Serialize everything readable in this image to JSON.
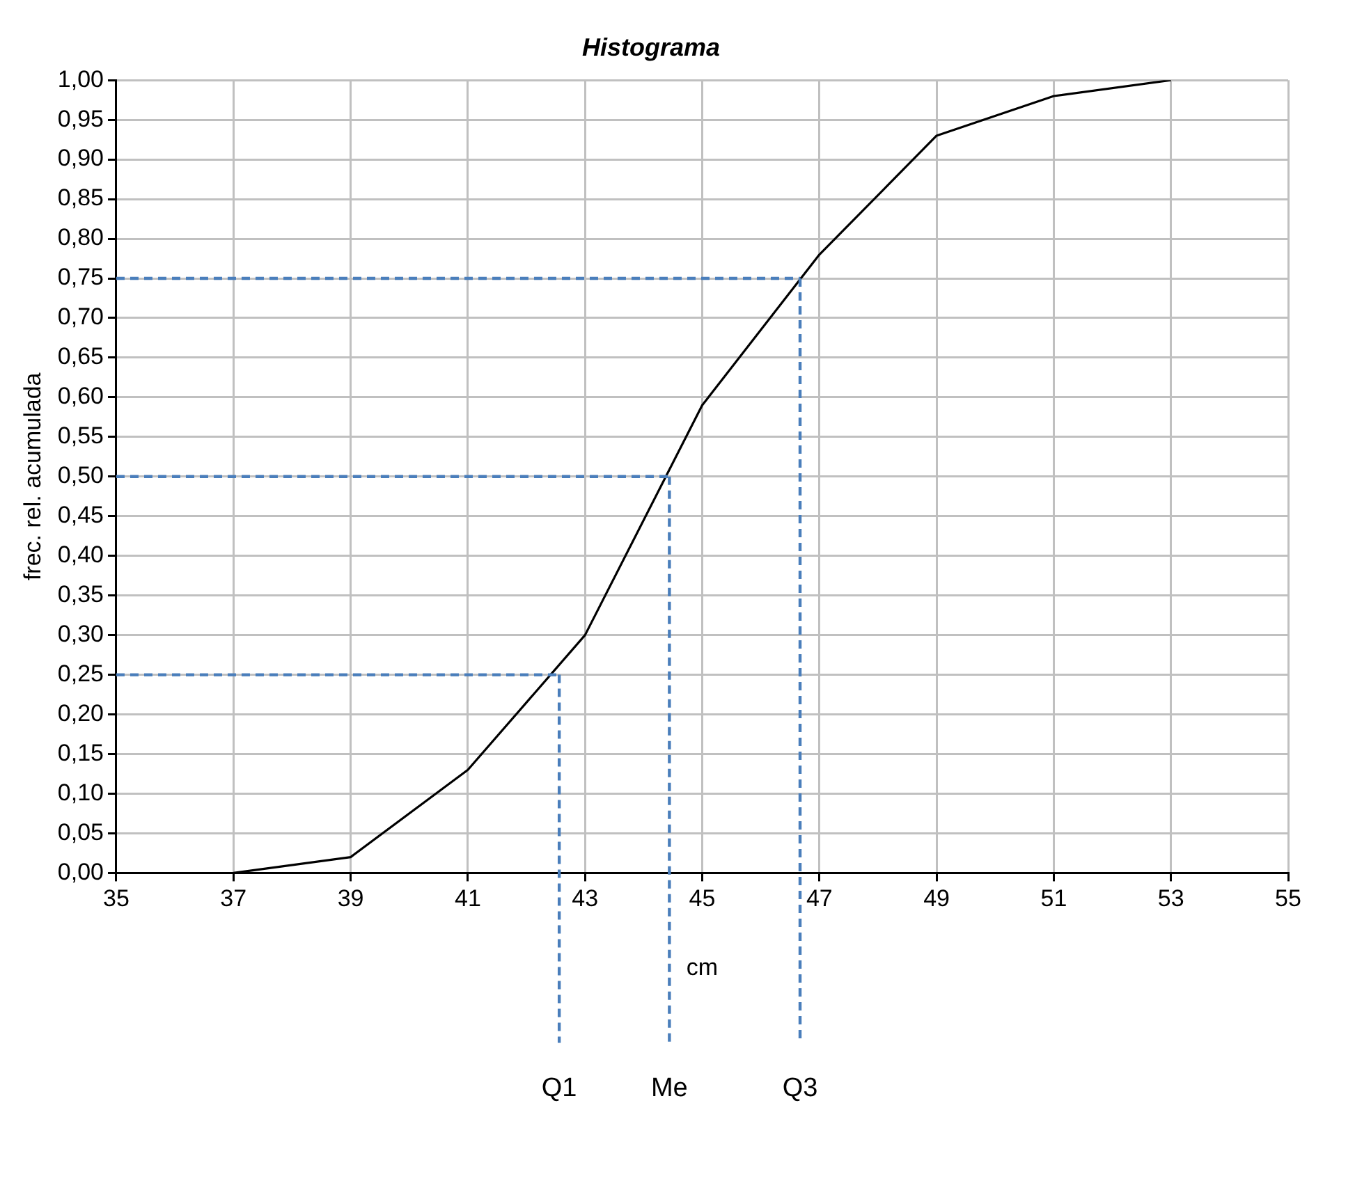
{
  "chart_data": {
    "type": "line",
    "title": "Histograma",
    "xlabel": "cm",
    "ylabel": "frec. rel. acumulada",
    "x": [
      37,
      39,
      41,
      43,
      45,
      47,
      49,
      51,
      53
    ],
    "series": [
      {
        "color": "#000000",
        "values": [
          0,
          0.02,
          0.13,
          0.3,
          0.59,
          0.78,
          0.93,
          0.98,
          1.0
        ]
      }
    ],
    "xlim": [
      35,
      55
    ],
    "xticks": [
      35,
      37,
      39,
      41,
      43,
      45,
      47,
      49,
      51,
      53,
      55
    ],
    "ylim": [
      0,
      1
    ],
    "yticks": [
      {
        "value": 0,
        "label": "0,00"
      },
      {
        "value": 0.05,
        "label": "0,05"
      },
      {
        "value": 0.1,
        "label": "0,10"
      },
      {
        "value": 0.15,
        "label": "0,15"
      },
      {
        "value": 0.2,
        "label": "0,20"
      },
      {
        "value": 0.25,
        "label": "0,25"
      },
      {
        "value": 0.3,
        "label": "0,30"
      },
      {
        "value": 0.35,
        "label": "0,35"
      },
      {
        "value": 0.4,
        "label": "0,40"
      },
      {
        "value": 0.45,
        "label": "0,45"
      },
      {
        "value": 0.5,
        "label": "0,50"
      },
      {
        "value": 0.55,
        "label": "0,55"
      },
      {
        "value": 0.6,
        "label": "0,60"
      },
      {
        "value": 0.65,
        "label": "0,65"
      },
      {
        "value": 0.7,
        "label": "0,70"
      },
      {
        "value": 0.75,
        "label": "0,75"
      },
      {
        "value": 0.8,
        "label": "0,80"
      },
      {
        "value": 0.85,
        "label": "0,85"
      },
      {
        "value": 0.9,
        "label": "0,90"
      },
      {
        "value": 0.95,
        "label": "0,95"
      },
      {
        "value": 1,
        "label": "1,00"
      }
    ],
    "ref_lines": [
      {
        "axis": "y",
        "value": 0.25,
        "color": "#4a7ebb",
        "line_style": "dashed"
      },
      {
        "axis": "y",
        "value": 0.5,
        "color": "#4a7ebb",
        "line_style": "dashed"
      },
      {
        "axis": "y",
        "value": 0.75,
        "color": "#4a7ebb",
        "line_style": "dashed"
      },
      {
        "axis": "x",
        "value": 42.56,
        "label": "Q1",
        "color": "#4a7ebb",
        "line_style": "dashed"
      },
      {
        "axis": "x",
        "value": 44.44,
        "label": "Me",
        "color": "#4a7ebb",
        "line_style": "dashed"
      },
      {
        "axis": "x",
        "value": 46.67,
        "label": "Q3",
        "color": "#4a7ebb",
        "line_style": "dashed"
      }
    ],
    "grid": true,
    "legend": false,
    "marker": "none",
    "line_style": "solid"
  }
}
